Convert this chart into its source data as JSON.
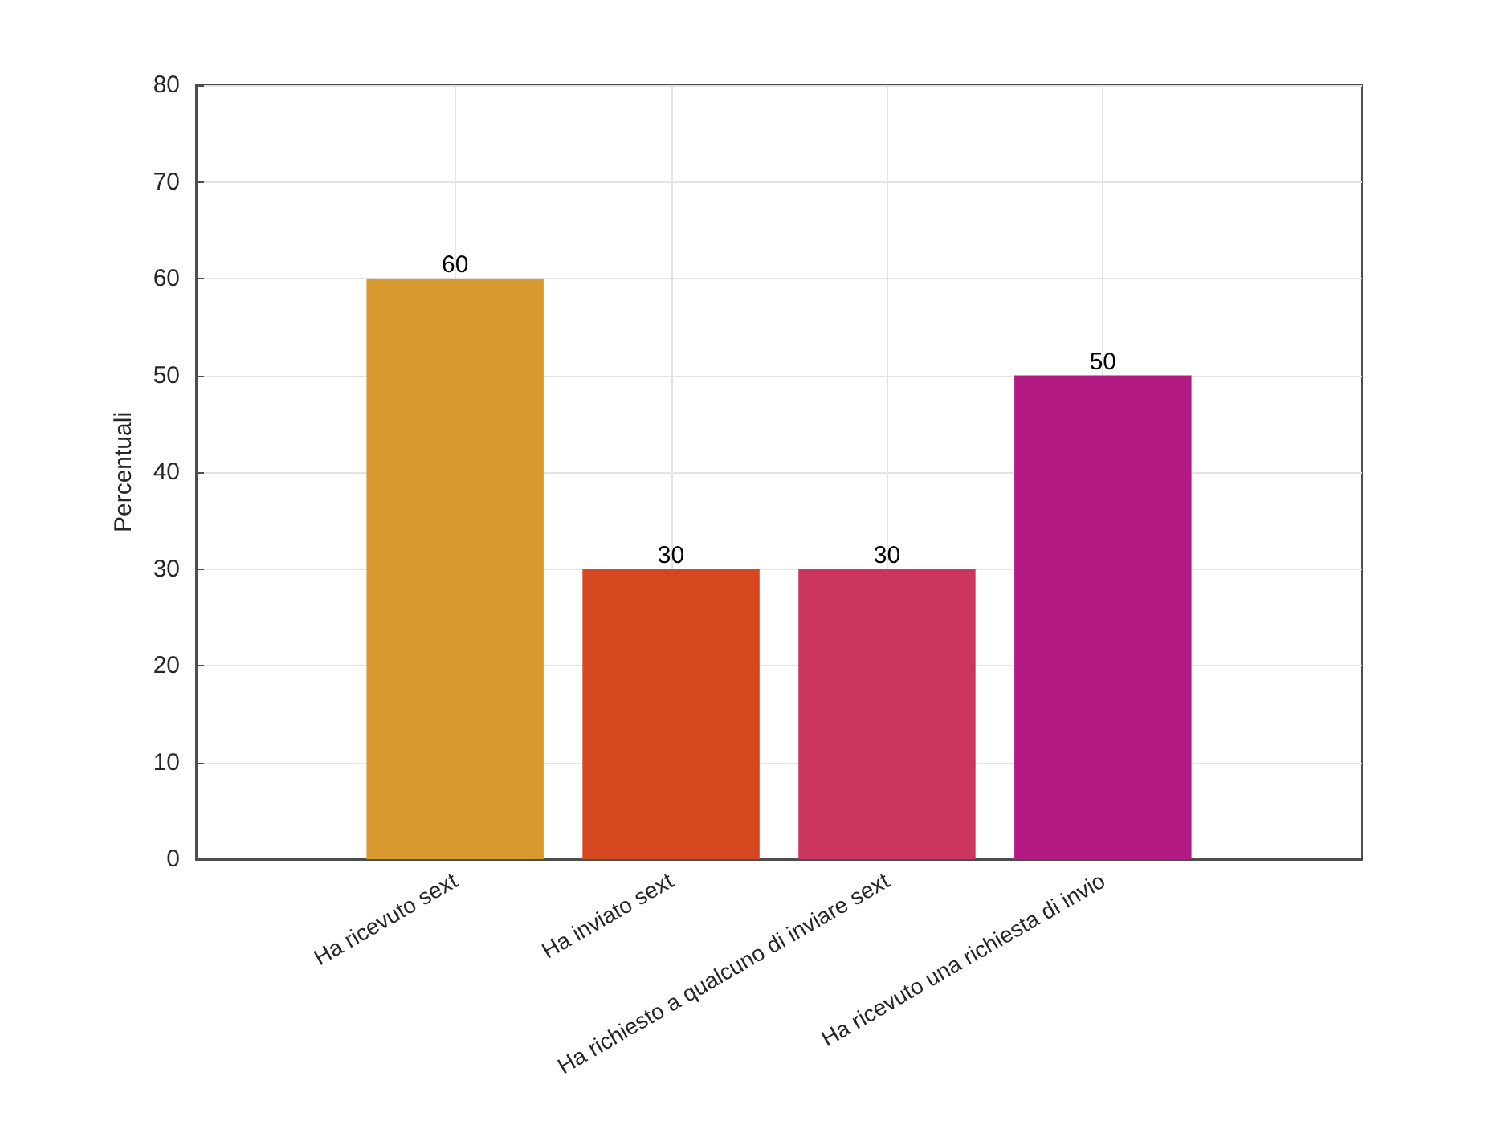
{
  "chart_data": {
    "type": "bar",
    "ylabel": "Percentuali",
    "categories": [
      "Ha ricevuto sext",
      "Ha inviato sext",
      "Ha richiesto a qualcuno di inviare sext",
      "Ha ricevuto una richiesta di invio"
    ],
    "values": [
      60,
      30,
      30,
      50
    ],
    "colors": [
      "#d89a2e",
      "#d4471f",
      "#cc3560",
      "#b31a84"
    ],
    "ylim": [
      0,
      80
    ],
    "yticks": [
      0,
      10,
      20,
      30,
      40,
      50,
      60,
      70,
      80
    ],
    "grid": true,
    "data_labels": true
  }
}
